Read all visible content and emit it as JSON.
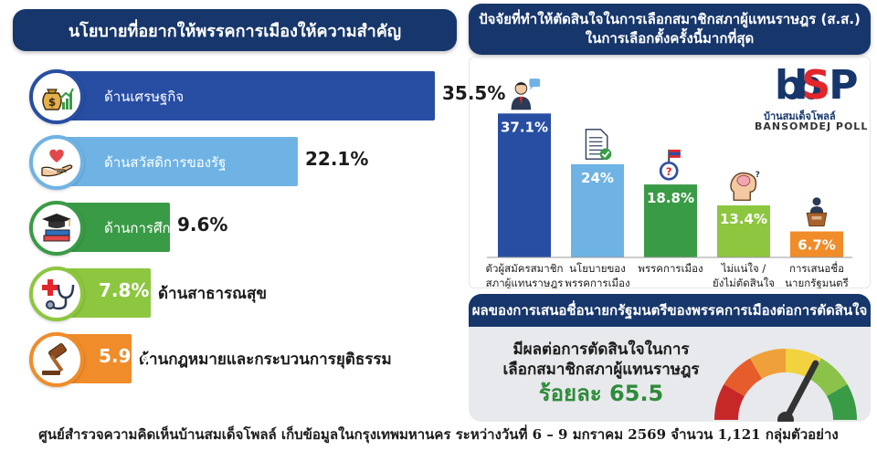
{
  "left_panel": {
    "title": "นโยบายที่อยากให้พรรคการเมืองให้ความสำคัญ",
    "items": [
      {
        "label": "ด้านเศรษฐกิจ",
        "value": "35.5%",
        "pct": 35.5,
        "color": "#284ea3",
        "icon": "money-bag-growth-icon"
      },
      {
        "label": "ด้านสวัสดิการของรัฐ",
        "value": "22.1%",
        "pct": 22.1,
        "color": "#6fb3e4",
        "icon": "heart-hand-icon"
      },
      {
        "label": "ด้านการศึกษา",
        "value": "9.6%",
        "pct": 9.6,
        "color": "#3a9b47",
        "icon": "graduation-books-icon"
      },
      {
        "label": "ด้านสาธารณสุข",
        "value": "7.8%",
        "pct": 7.8,
        "color": "#8dc63f",
        "icon": "stethoscope-cross-icon"
      },
      {
        "label": "ด้านกฎหมายและกระบวนการยุติธรรม",
        "value": "5.9%",
        "pct": 5.9,
        "color": "#f08c2a",
        "icon": "gavel-icon"
      }
    ]
  },
  "chart_data": {
    "type": "bar",
    "title": "ปัจจัยที่ทำให้ตัดสินใจในการเลือกสมาชิกสภาผู้แทนราษฎร (ส.ส.) ในการเลือกตั้งครั้งนี้มากที่สุด",
    "title_lines": [
      "ปัจจัยที่ทำให้ตัดสินใจในการเลือกสมาชิกสภาผู้แทนราษฎร (ส.ส.)",
      "ในการเลือกตั้งครั้งนี้มากที่สุด"
    ],
    "categories": [
      [
        "ตัวผู้สมัครสมาชิก",
        "สภาผู้แทนราษฎร"
      ],
      [
        "นโยบายของ",
        "พรรคการเมือง"
      ],
      [
        "พรรคการเมือง"
      ],
      [
        "ไม่แน่ใจ /",
        "ยังไม่ตัดสินใจ"
      ],
      [
        "การเสนอชื่อ",
        "นายกรัฐมนตรี"
      ]
    ],
    "values": [
      37.1,
      24,
      18.8,
      13.4,
      6.7
    ],
    "labels": [
      "37.1%",
      "24%",
      "18.8%",
      "13.4%",
      "6.7%"
    ],
    "colors": [
      "#284ea3",
      "#6fb3e4",
      "#3a9b47",
      "#8dc63f",
      "#f08c2a"
    ],
    "icons": [
      "candidate-speech-icon",
      "policy-document-icon",
      "party-flag-icon",
      "thinking-head-icon",
      "podium-speaker-icon"
    ],
    "ylim": [
      0,
      40
    ]
  },
  "logo": {
    "mark": "bSP",
    "thai": "บ้านสมเด็จโพลล์",
    "english": "BANSOMDEJ POLL"
  },
  "effect": {
    "title": "ผลของการเสนอชื่อนายกรัฐมนตรีของพรรคการเมืองต่อการตัดสินใจ",
    "line1": "มีผลต่อการตัดสินใจในการ",
    "line2": "เลือกสมาชิกสภาผู้แทนราษฎร",
    "value_text": "ร้อยละ 65.5",
    "value": 65.5
  },
  "footer": "ศูนย์สำรวจความคิดเห็นบ้านสมเด็จโพลล์ เก็บข้อมูลในกรุงเทพมหานคร ระหว่างวันที่ 6 – 9 มกราคม 2569 จำนวน 1,121 กลุ่มตัวอย่าง"
}
